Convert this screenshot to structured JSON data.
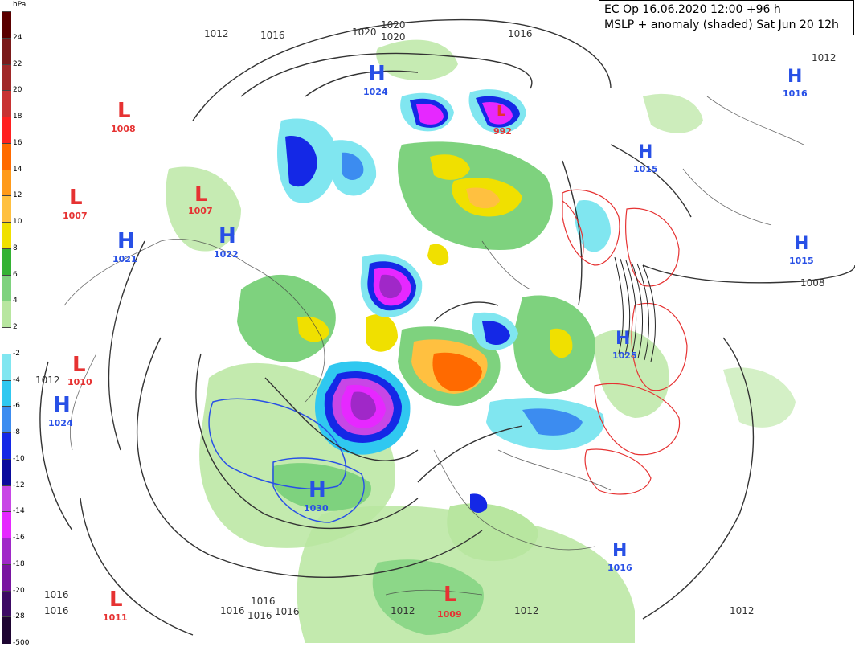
{
  "header": {
    "line1": "EC Op 16.06.2020 12:00 +96 h",
    "line2": "MSLP + anomaly (shaded) Sat Jun 20 12h"
  },
  "colorbar": {
    "unit": "hPa",
    "labels": [
      "24",
      "22",
      "20",
      "18",
      "16",
      "14",
      "12",
      "10",
      "8",
      "6",
      "4",
      "2",
      "-2",
      "-4",
      "-6",
      "-8",
      "-10",
      "-12",
      "-14",
      "-16",
      "-18",
      "-20",
      "-28",
      "-500"
    ],
    "colors": [
      "#5a0000",
      "#7a1a1a",
      "#a02828",
      "#c83232",
      "#ff2020",
      "#ff6a00",
      "#ff9a1a",
      "#ffc040",
      "#f0e000",
      "#33b233",
      "#7ed27e",
      "#b8e6a0",
      "#ffffff",
      "#80e6f0",
      "#30c8f0",
      "#3c8cf0",
      "#1428e6",
      "#0a0a9c",
      "#c846e6",
      "#e628ff",
      "#a028c8",
      "#7814a0",
      "#3c0a64",
      "#1e0532"
    ]
  },
  "pressure_centers": [
    {
      "type": "L",
      "value": "1008",
      "color": "#e63232"
    },
    {
      "type": "L",
      "value": "1007",
      "color": "#e63232"
    },
    {
      "type": "L",
      "value": "1007",
      "color": "#e63232"
    },
    {
      "type": "L",
      "value": "1010",
      "color": "#e63232"
    },
    {
      "type": "L",
      "value": "1011",
      "color": "#e63232"
    },
    {
      "type": "L",
      "value": "1009",
      "color": "#e63232"
    },
    {
      "type": "L",
      "value": "992",
      "color": "#e63232"
    },
    {
      "type": "H",
      "value": "1024",
      "color": "#2850e6"
    },
    {
      "type": "H",
      "value": "1021",
      "color": "#2850e6"
    },
    {
      "type": "H",
      "value": "1022",
      "color": "#2850e6"
    },
    {
      "type": "H",
      "value": "1024",
      "color": "#2850e6"
    },
    {
      "type": "H",
      "value": "1030",
      "color": "#2850e6"
    },
    {
      "type": "H",
      "value": "1016",
      "color": "#2850e6"
    },
    {
      "type": "H",
      "value": "1015",
      "color": "#2850e6"
    },
    {
      "type": "H",
      "value": "1015",
      "color": "#2850e6"
    },
    {
      "type": "H",
      "value": "1016",
      "color": "#2850e6"
    },
    {
      "type": "H",
      "value": "1025",
      "color": "#2850e6"
    }
  ],
  "isobar_labels": [
    "1012",
    "1016",
    "1020",
    "1020",
    "1020",
    "1016",
    "1008",
    "1012",
    "1016",
    "1016",
    "1016",
    "1016",
    "1012",
    "1012",
    "1012",
    "1012",
    "1016",
    "1016"
  ]
}
